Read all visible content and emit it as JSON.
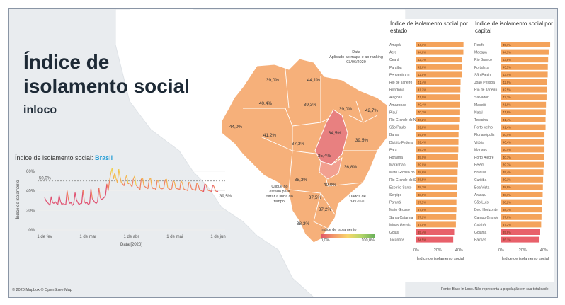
{
  "title_line1": "Índice de",
  "title_line2": "isolamento social",
  "subtitle": "inloco",
  "date_box": {
    "label": "Data",
    "note": "Aplicado ao mapa e ao ranking",
    "value": "03/06/2020"
  },
  "line_chart_title_prefix": "Índice de isolamento social:",
  "line_chart_title_country": "Brasil",
  "map_labels": [
    {
      "text": "39,0%"
    },
    {
      "text": "44,1%"
    },
    {
      "text": "40,4%"
    },
    {
      "text": "39,3%"
    },
    {
      "text": "39,0%"
    },
    {
      "text": "42,7%"
    },
    {
      "text": "44,0%"
    },
    {
      "text": "41,2%"
    },
    {
      "text": "37,3%"
    },
    {
      "text": "34,5%"
    },
    {
      "text": "39,5%"
    },
    {
      "text": "35,4%"
    },
    {
      "text": "36,8%"
    },
    {
      "text": "38,3%"
    },
    {
      "text": "40,0%"
    },
    {
      "text": "37,5%"
    },
    {
      "text": "37,2%"
    },
    {
      "text": "38,3%"
    }
  ],
  "map_hint": "Clique no estado para filtrar a linha do tempo.",
  "map_date_hint": "Dados de 3/6/2020",
  "legend": {
    "title": "Índice de isolamento",
    "min": "0,0%",
    "max": "100,0%"
  },
  "credits_left": "© 2020 Mapbox © OpenStreetMap",
  "credits_right": "Fonte: Base In Loco. Não representa a população em sua totalidade.",
  "colors": {
    "bar": "#f4a35b",
    "bar_low": "#e8606a",
    "map_fill": "#f7b57a",
    "map_highlight": "#ea7a7a"
  },
  "chart_data": [
    {
      "type": "line",
      "title": "Índice de isolamento social: Brasil",
      "xlabel": "Data [2020]",
      "ylabel": "Índice de isolamento",
      "x_ticks": [
        "1 de fev",
        "1 de mar",
        "1 de abr",
        "1 de mai",
        "1 de jun"
      ],
      "y_ticks": [
        "0%",
        "20%",
        "40%",
        "60%"
      ],
      "ylim": [
        0,
        62
      ],
      "reference_line": 50,
      "reference_label": "50,0%",
      "end_label": "39,5%",
      "values": [
        33,
        30,
        28,
        27,
        25,
        34,
        28,
        27,
        29,
        27,
        26,
        35,
        29,
        26,
        27,
        26,
        26,
        40,
        31,
        27,
        28,
        25,
        27,
        38,
        31,
        28,
        26,
        27,
        27,
        41,
        29,
        27,
        28,
        26,
        27,
        42,
        32,
        30,
        28,
        27,
        29,
        43,
        33,
        31,
        32,
        33,
        35,
        47,
        40,
        50,
        58,
        63,
        52,
        58,
        52,
        48,
        62,
        54,
        48,
        47,
        45,
        52,
        56,
        47,
        48,
        46,
        44,
        52,
        55,
        46,
        44,
        43,
        41,
        52,
        53,
        45,
        44,
        43,
        42,
        51,
        53,
        44,
        42,
        43,
        41,
        50,
        50,
        43,
        42,
        42,
        43,
        51,
        52,
        43,
        42,
        41,
        42,
        50,
        49,
        43,
        42,
        42,
        41,
        50,
        48,
        42,
        41,
        41,
        40,
        49,
        47,
        42,
        41,
        41,
        40,
        48,
        46,
        41,
        40,
        40,
        39,
        47,
        46,
        41,
        40,
        40,
        39,
        46,
        44,
        40,
        39,
        39.5
      ]
    },
    {
      "type": "bar",
      "title": "Índice de isolamento social por estado",
      "xlabel": "Índice de isolamento social",
      "x_ticks": [
        "0%",
        "20%",
        "40%"
      ],
      "xlim": [
        0,
        45
      ],
      "categories": [
        "Amapá",
        "Acre",
        "Ceará",
        "Paraíba",
        "Pernambuco",
        "Rio de Janeiro",
        "Rondônia",
        "Alagoas",
        "Amazonas",
        "Piauí",
        "Rio Grande do Norte",
        "São Paulo",
        "Bahia",
        "Distrito Federal",
        "Pará",
        "Roraima",
        "Maranhão",
        "Mato Grosso do Sul",
        "Rio Grande do Sul",
        "Espírito Santo",
        "Sergipe",
        "Paraná",
        "Mato Grosso",
        "Santa Catarina",
        "Minas Gerais",
        "Goiás",
        "Tocantins"
      ],
      "values": [
        44.1,
        44.0,
        42.7,
        42.6,
        42.5,
        41.4,
        41.2,
        41.0,
        40.4,
        40.3,
        40.2,
        39.8,
        39.5,
        39.4,
        39.3,
        39.0,
        39.0,
        38.6,
        38.5,
        38.3,
        38.0,
        37.5,
        37.5,
        37.2,
        37.0,
        35.4,
        34.5
      ],
      "value_labels": [
        "44,1%",
        "44,0%",
        "42,7%",
        "42,6%",
        "42,5%",
        "41,4%",
        "41,2%",
        "41,0%",
        "40,4%",
        "40,3%",
        "40,2%",
        "39,8%",
        "39,5%",
        "39,4%",
        "39,3%",
        "39,0%",
        "39,0%",
        "38,6%",
        "38,5%",
        "38,3%",
        "38,0%",
        "37,5%",
        "37,5%",
        "37,2%",
        "37,0%",
        "35,4%",
        "34,5%"
      ]
    },
    {
      "type": "bar",
      "title": "Índice de isolamento social por capital",
      "xlabel": "Índice de isolamento social",
      "x_ticks": [
        "0%",
        "20%",
        "40%"
      ],
      "xlim": [
        0,
        45
      ],
      "categories": [
        "Recife",
        "Macapá",
        "Rio Branco",
        "Fortaleza",
        "São Paulo",
        "João Pessoa",
        "Rio de Janeiro",
        "Salvador",
        "Maceió",
        "Natal",
        "Teresina",
        "Porto Velho",
        "Florianópolis",
        "Vitória",
        "Manaus",
        "Porto Alegre",
        "Belém",
        "Brasília",
        "Curitiba",
        "Boa Vista",
        "Aracaju",
        "São Luís",
        "Belo Horizonte",
        "Campo Grande",
        "Cuiabá",
        "Goiânia",
        "Palmas"
      ],
      "values": [
        45.7,
        44.3,
        43.8,
        43.5,
        43.4,
        42.9,
        42.5,
        42.3,
        41.8,
        41.6,
        41.4,
        41.4,
        40.4,
        40.4,
        40.4,
        40.1,
        39.7,
        39.4,
        39.1,
        38.9,
        38.7,
        38.2,
        38.1,
        37.6,
        37.3,
        35.9,
        35.1
      ],
      "value_labels": [
        "45,7%",
        "44,3%",
        "43,8%",
        "43,5%",
        "43,4%",
        "42,9%",
        "42,5%",
        "42,3%",
        "41,8%",
        "41,6%",
        "41,4%",
        "41,4%",
        "40,4%",
        "40,4%",
        "40,4%",
        "40,1%",
        "39,7%",
        "39,4%",
        "39,1%",
        "38,9%",
        "38,7%",
        "38,2%",
        "38,1%",
        "37,6%",
        "37,3%",
        "35,9%",
        "35,1%"
      ]
    }
  ]
}
